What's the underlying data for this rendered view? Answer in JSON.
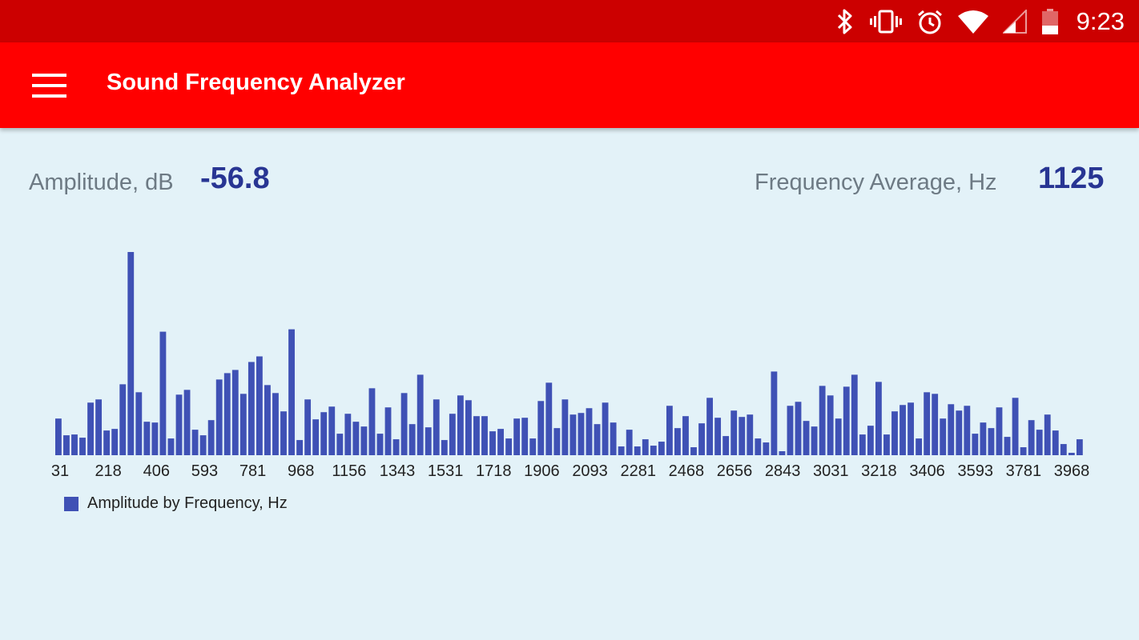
{
  "status_bar": {
    "time": "9:23",
    "icons": [
      "bluetooth-icon",
      "vibrate-icon",
      "alarm-icon",
      "wifi-icon",
      "cell-signal-icon",
      "battery-icon"
    ]
  },
  "app_bar": {
    "title": "Sound Frequency Analyzer",
    "menu_icon": "hamburger-menu-icon"
  },
  "metrics": {
    "amplitude_label": "Amplitude, dB",
    "amplitude_value": "-56.8",
    "frequency_label": "Frequency Average, Hz",
    "frequency_value": "1125"
  },
  "colors": {
    "status_bar": "#cc0000",
    "app_bar": "#ff0000",
    "background": "#e3f2f8",
    "bar": "#3f51b5",
    "value_text": "#283593"
  },
  "chart_data": {
    "type": "bar",
    "ylim": [
      0,
      256
    ],
    "x_tick_labels": [
      "31",
      "218",
      "406",
      "593",
      "781",
      "968",
      "1156",
      "1343",
      "1531",
      "1718",
      "1906",
      "2093",
      "2281",
      "2468",
      "2656",
      "2843",
      "3031",
      "3218",
      "3406",
      "3593",
      "3781",
      "3968"
    ],
    "values": [
      46,
      25,
      26,
      22,
      66,
      70,
      31,
      33,
      89,
      255,
      79,
      42,
      41,
      155,
      21,
      76,
      82,
      32,
      25,
      44,
      95,
      103,
      107,
      77,
      117,
      124,
      88,
      78,
      55,
      158,
      19,
      70,
      45,
      54,
      61,
      27,
      52,
      42,
      36,
      84,
      27,
      60,
      20,
      78,
      39,
      101,
      35,
      70,
      19,
      52,
      75,
      69,
      49,
      49,
      30,
      33,
      21,
      46,
      47,
      21,
      68,
      91,
      34,
      70,
      51,
      53,
      59,
      39,
      66,
      41,
      11,
      32,
      11,
      20,
      12,
      17,
      62,
      34,
      49,
      10,
      40,
      72,
      47,
      24,
      56,
      48,
      51,
      21,
      16,
      105,
      5,
      62,
      67,
      43,
      36,
      87,
      75,
      46,
      86,
      101,
      26,
      37,
      92,
      26,
      55,
      63,
      66,
      21,
      79,
      77,
      46,
      64,
      56,
      62,
      27,
      41,
      34,
      60,
      23,
      72,
      10,
      44,
      32,
      51,
      31,
      14,
      3,
      20
    ]
  },
  "legend": {
    "label": "Amplitude by Frequency, Hz"
  }
}
